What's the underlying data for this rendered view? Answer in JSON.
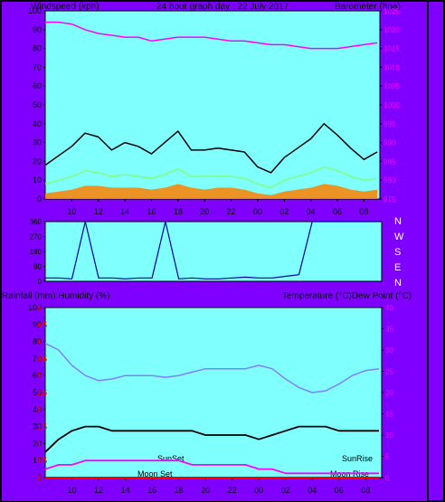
{
  "header": {
    "left": "Windspeed (kph)",
    "center": "24 hour graph day : 22 July 2017",
    "right": "Barometer (hpa)"
  },
  "mid_labels": {
    "left": "Rainfall (mm)  Humidity (%)",
    "right": "Temperature (°C)Dew Point (°C)"
  },
  "direction_labels": [
    "N",
    "W",
    "S",
    "E",
    "N"
  ],
  "annotations": {
    "sunset": "SunSet",
    "sunrise": "SunRise",
    "moonset": "Moon Set",
    "moonrise": "Moon Rise"
  },
  "colors": {
    "frame": "#8000ff",
    "plot_bg": "#80ffff",
    "gust": "#000000",
    "wind": "#80ff80",
    "wind_avg": "#ff8000",
    "barometer": "#ff00ff",
    "direction": "#0000a0",
    "humidity": "#8080ff",
    "temperature": "#000000",
    "dewpoint": "#ff00ff",
    "rain": "#ff0000",
    "right_axis_text": "#ff00ff",
    "rain_axis_text": "#ff0000"
  },
  "chart_data": [
    {
      "type": "line",
      "name": "wind-barometer",
      "x_ticks": [
        "10",
        "12",
        "14",
        "16",
        "18",
        "20",
        "22",
        "00",
        "02",
        "04",
        "06",
        "08"
      ],
      "y_left_ticks": [
        0,
        10,
        20,
        30,
        40,
        50,
        60,
        70,
        80,
        90,
        100
      ],
      "y_left_range": [
        0,
        100
      ],
      "y_right_ticks": [
        975,
        980,
        985,
        990,
        995,
        1000,
        1005,
        1010,
        1015,
        1020,
        1025
      ],
      "y_right_range": [
        975,
        1025
      ],
      "x_hours": [
        8,
        9,
        10,
        11,
        12,
        13,
        14,
        15,
        16,
        17,
        18,
        19,
        20,
        21,
        22,
        23,
        24,
        25,
        26,
        27,
        28,
        29,
        30,
        31,
        32,
        33
      ],
      "gust": [
        18,
        23,
        28,
        35,
        33,
        26,
        30,
        28,
        24,
        30,
        36,
        26,
        26,
        27,
        26,
        25,
        17,
        14,
        22,
        27,
        32,
        40,
        34,
        27,
        21,
        25
      ],
      "wind": [
        8,
        10,
        12,
        15,
        14,
        12,
        13,
        12,
        11,
        13,
        16,
        12,
        12,
        12,
        12,
        11,
        8,
        6,
        10,
        12,
        14,
        17,
        15,
        12,
        10,
        11
      ],
      "wind_avg": [
        3,
        4,
        5,
        7,
        7,
        6,
        6,
        6,
        5,
        6,
        8,
        6,
        5,
        6,
        6,
        5,
        3,
        2,
        4,
        5,
        6,
        8,
        7,
        5,
        4,
        5
      ],
      "barometer": [
        1022,
        1022,
        1021.5,
        1020,
        1019,
        1018.5,
        1018,
        1018,
        1017,
        1017.5,
        1018,
        1018,
        1018,
        1017.5,
        1017,
        1017,
        1016.5,
        1016,
        1016,
        1015.5,
        1015,
        1015,
        1015,
        1015.5,
        1016,
        1016.5
      ]
    },
    {
      "type": "line",
      "name": "wind-direction",
      "y_ticks": [
        0,
        90,
        180,
        270,
        360
      ],
      "y_range": [
        0,
        360
      ],
      "x_hours": [
        8,
        9,
        10,
        11,
        12,
        13,
        14,
        15,
        16,
        17,
        18,
        19,
        20,
        21,
        22,
        23,
        24,
        25,
        26,
        27,
        28,
        29,
        30,
        31,
        32,
        33
      ],
      "direction": [
        20,
        20,
        15,
        360,
        20,
        20,
        15,
        20,
        20,
        360,
        15,
        20,
        15,
        15,
        20,
        25,
        20,
        20,
        30,
        40,
        360,
        360,
        360,
        360,
        360,
        360
      ]
    },
    {
      "type": "line",
      "name": "rain-humidity-temperature",
      "x_ticks": [
        "10",
        "12",
        "14",
        "16",
        "18",
        "20",
        "22",
        "00",
        "02",
        "04",
        "06",
        "08"
      ],
      "y_left_ticks": [
        0,
        10,
        20,
        30,
        40,
        50,
        60,
        70,
        80,
        90,
        100
      ],
      "y_left_range": [
        0,
        100
      ],
      "y_rain_ticks": [
        0,
        0.5,
        1,
        1.5,
        2,
        2.5,
        3,
        3.5,
        4,
        4.5,
        5
      ],
      "y_right_ticks": [
        0,
        5,
        10,
        15,
        20,
        25,
        30,
        35,
        40
      ],
      "y_right_range": [
        0,
        40
      ],
      "x_hours": [
        8,
        9,
        10,
        11,
        12,
        13,
        14,
        15,
        16,
        17,
        18,
        19,
        20,
        21,
        22,
        23,
        24,
        25,
        26,
        27,
        28,
        29,
        30,
        31,
        32,
        33
      ],
      "humidity": [
        79,
        75,
        66,
        60,
        57,
        58,
        60,
        60,
        60,
        59,
        60,
        62,
        64,
        64,
        64,
        64,
        66,
        64,
        58,
        53,
        50,
        51,
        55,
        60,
        63,
        64
      ],
      "temperature": [
        6,
        9,
        11,
        12,
        12,
        11,
        11,
        11,
        11,
        11,
        11,
        11,
        10,
        10,
        10,
        10,
        9,
        10,
        11,
        12,
        12,
        12,
        11,
        11,
        11,
        11
      ],
      "dewpoint": [
        2,
        3,
        3,
        4,
        4,
        4,
        4,
        4,
        4,
        4,
        4,
        3,
        3,
        3,
        3,
        3,
        2,
        2,
        1,
        1,
        1,
        1,
        1,
        1,
        1,
        1
      ],
      "rain": [
        0,
        0,
        0,
        0,
        0,
        0,
        0,
        0,
        0,
        0,
        0,
        0,
        0,
        0,
        0,
        0,
        0,
        0,
        0,
        0,
        0,
        0,
        0,
        0,
        0,
        0
      ]
    }
  ]
}
